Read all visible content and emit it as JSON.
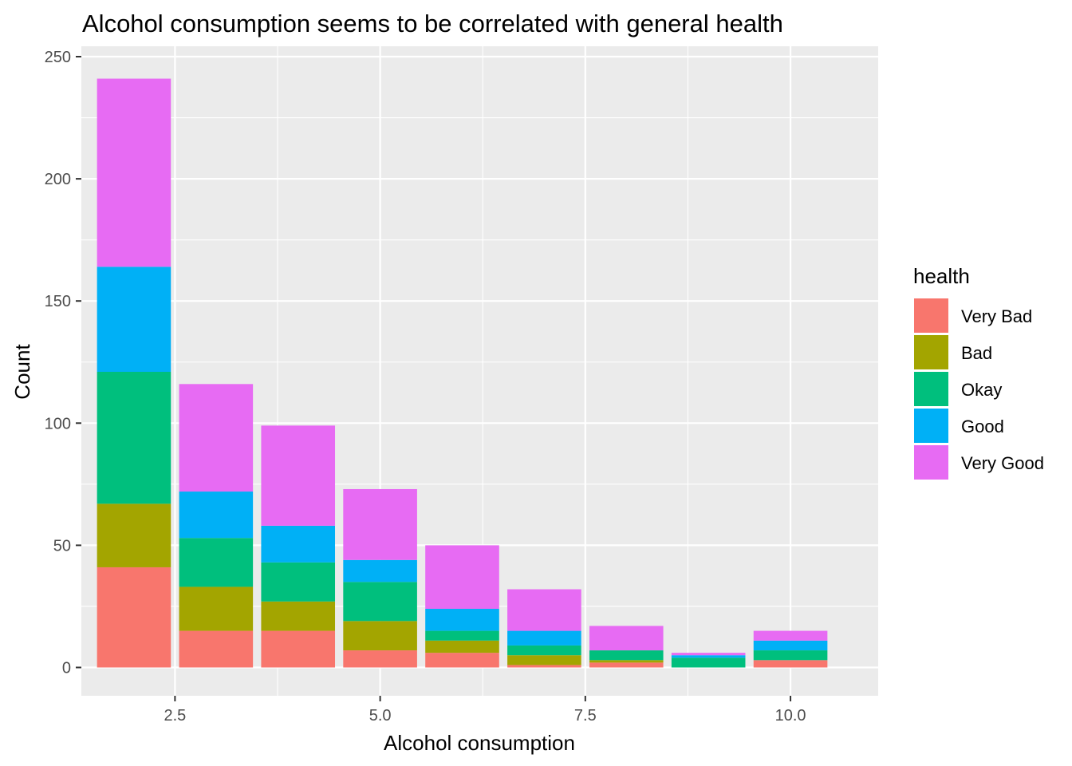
{
  "chart_data": {
    "type": "bar",
    "stacked": true,
    "title": "Alcohol consumption seems to be correlated with general health",
    "xlabel": "Alcohol consumption",
    "ylabel": "Count",
    "x": [
      2,
      3,
      4,
      5,
      6,
      7,
      8,
      9,
      10
    ],
    "xlim": [
      1.5,
      10.5
    ],
    "ylim": [
      0,
      250
    ],
    "xticks": [
      2.5,
      5.0,
      7.5,
      10.0
    ],
    "xtick_labels": [
      "2.5",
      "5.0",
      "7.5",
      "10.0"
    ],
    "yticks": [
      0,
      50,
      100,
      150,
      200,
      250
    ],
    "ytick_labels": [
      "0",
      "50",
      "100",
      "150",
      "200",
      "250"
    ],
    "grid": true,
    "legend": {
      "title": "health",
      "position": "right"
    },
    "series": [
      {
        "name": "Very Bad",
        "color": "#F8766D",
        "values": [
          41,
          15,
          15,
          7,
          6,
          1,
          2,
          0,
          3
        ]
      },
      {
        "name": "Bad",
        "color": "#A3A500",
        "values": [
          26,
          18,
          12,
          12,
          5,
          4,
          1,
          0,
          0
        ]
      },
      {
        "name": "Okay",
        "color": "#00BF7D",
        "values": [
          54,
          20,
          16,
          16,
          4,
          4,
          4,
          4,
          4
        ]
      },
      {
        "name": "Good",
        "color": "#00B0F6",
        "values": [
          43,
          19,
          15,
          9,
          9,
          6,
          0,
          1,
          4
        ]
      },
      {
        "name": "Very Good",
        "color": "#E76BF3",
        "values": [
          77,
          44,
          41,
          29,
          26,
          17,
          10,
          1,
          4
        ]
      }
    ]
  }
}
